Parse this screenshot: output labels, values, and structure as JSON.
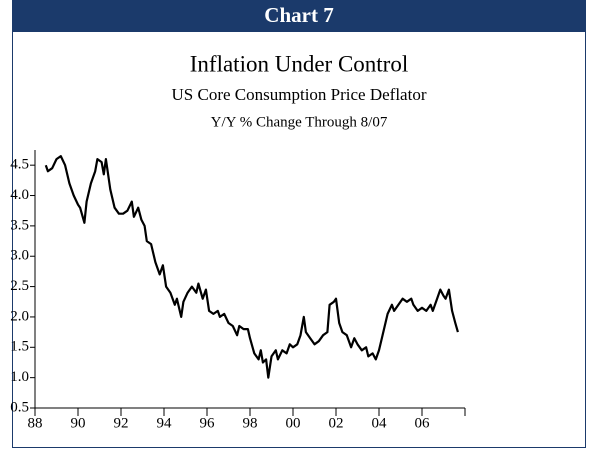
{
  "header": {
    "title": "Chart 7"
  },
  "chart_data": {
    "type": "line",
    "title": "Inflation Under Control",
    "subtitle": "US Core Consumption Price Deflator",
    "note": "Y/Y % Change Through 8/07",
    "color": "#000000",
    "x": [
      1988.5,
      1988.6,
      1988.8,
      1989.0,
      1989.2,
      1989.4,
      1989.6,
      1989.8,
      1990.0,
      1990.1,
      1990.3,
      1990.4,
      1990.6,
      1990.8,
      1990.9,
      1991.1,
      1991.2,
      1991.3,
      1991.5,
      1991.7,
      1991.9,
      1992.1,
      1992.3,
      1992.5,
      1992.6,
      1992.8,
      1992.95,
      1993.1,
      1993.2,
      1993.4,
      1993.6,
      1993.8,
      1993.95,
      1994.1,
      1994.3,
      1994.5,
      1994.6,
      1994.8,
      1994.9,
      1995.1,
      1995.3,
      1995.5,
      1995.6,
      1995.8,
      1995.95,
      1996.1,
      1996.3,
      1996.5,
      1996.6,
      1996.8,
      1997.0,
      1997.2,
      1997.4,
      1997.5,
      1997.7,
      1997.9,
      1998.0,
      1998.2,
      1998.4,
      1998.5,
      1998.6,
      1998.75,
      1998.85,
      1999.0,
      1999.2,
      1999.3,
      1999.5,
      1999.7,
      1999.85,
      2000.0,
      2000.2,
      2000.35,
      2000.5,
      2000.6,
      2000.8,
      2001.0,
      2001.2,
      2001.4,
      2001.6,
      2001.7,
      2001.9,
      2002.0,
      2002.15,
      2002.3,
      2002.5,
      2002.7,
      2002.85,
      2003.0,
      2003.2,
      2003.4,
      2003.5,
      2003.7,
      2003.85,
      2004.0,
      2004.2,
      2004.4,
      2004.6,
      2004.7,
      2004.9,
      2005.1,
      2005.3,
      2005.5,
      2005.6,
      2005.8,
      2006.0,
      2006.2,
      2006.4,
      2006.5,
      2006.7,
      2006.85,
      2007.0,
      2007.1,
      2007.25,
      2007.4,
      2007.55,
      2007.67
    ],
    "values": [
      4.5,
      4.4,
      4.45,
      4.6,
      4.65,
      4.5,
      4.2,
      4.0,
      3.85,
      3.8,
      3.55,
      3.9,
      4.2,
      4.4,
      4.6,
      4.55,
      4.35,
      4.6,
      4.1,
      3.8,
      3.7,
      3.7,
      3.75,
      3.9,
      3.65,
      3.8,
      3.6,
      3.5,
      3.25,
      3.2,
      2.9,
      2.7,
      2.85,
      2.5,
      2.4,
      2.2,
      2.3,
      2.0,
      2.25,
      2.4,
      2.5,
      2.4,
      2.55,
      2.3,
      2.45,
      2.1,
      2.05,
      2.1,
      2.0,
      2.05,
      1.9,
      1.85,
      1.7,
      1.85,
      1.8,
      1.8,
      1.65,
      1.4,
      1.3,
      1.45,
      1.25,
      1.3,
      1.0,
      1.35,
      1.45,
      1.3,
      1.45,
      1.4,
      1.55,
      1.5,
      1.55,
      1.7,
      2.0,
      1.75,
      1.65,
      1.55,
      1.6,
      1.7,
      1.75,
      2.2,
      2.25,
      2.3,
      1.9,
      1.75,
      1.7,
      1.5,
      1.65,
      1.55,
      1.45,
      1.5,
      1.35,
      1.4,
      1.3,
      1.45,
      1.75,
      2.05,
      2.2,
      2.1,
      2.2,
      2.3,
      2.25,
      2.3,
      2.2,
      2.1,
      2.15,
      2.1,
      2.2,
      2.1,
      2.3,
      2.45,
      2.35,
      2.3,
      2.45,
      2.1,
      1.9,
      1.75
    ],
    "xlim": [
      1988,
      2008
    ],
    "xticks": [
      {
        "value": 1988,
        "label": "88"
      },
      {
        "value": 1990,
        "label": "90"
      },
      {
        "value": 1992,
        "label": "92"
      },
      {
        "value": 1994,
        "label": "94"
      },
      {
        "value": 1996,
        "label": "96"
      },
      {
        "value": 1998,
        "label": "98"
      },
      {
        "value": 2000,
        "label": "00"
      },
      {
        "value": 2002,
        "label": "02"
      },
      {
        "value": 2004,
        "label": "04"
      },
      {
        "value": 2006,
        "label": "06"
      },
      {
        "value": 2008,
        "label": ""
      }
    ],
    "ylim": [
      0.5,
      4.75
    ],
    "yticks": [
      0.5,
      {
        "value": 1,
        "label": "1.0"
      },
      1.5,
      {
        "value": 2,
        "label": "2.0"
      },
      2.5,
      {
        "value": 3,
        "label": "3.0"
      },
      3.5,
      {
        "value": 4,
        "label": "4.0"
      },
      4.5
    ]
  }
}
